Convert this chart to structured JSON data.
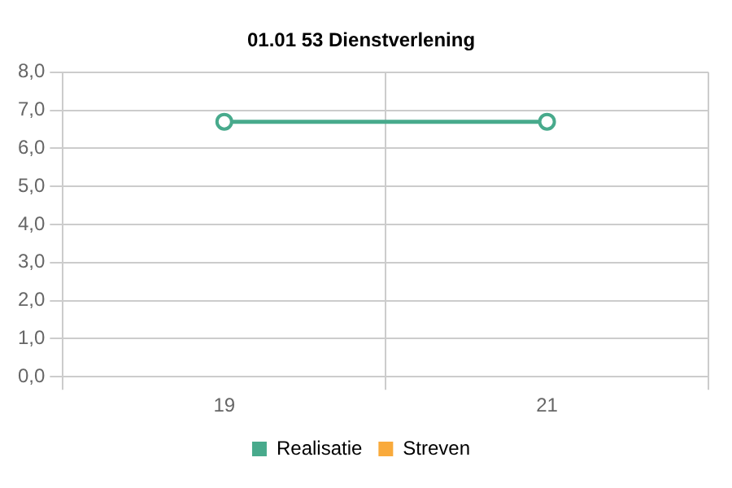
{
  "chart_data": {
    "type": "line",
    "title": "01.01 53 Dienstverlening",
    "categories": [
      "19",
      "21"
    ],
    "series": [
      {
        "name": "Realisatie",
        "color": "#48aa8c",
        "values": [
          6.7,
          6.7
        ]
      },
      {
        "name": "Streven",
        "color": "#f9aa3c",
        "values": [
          null,
          null
        ]
      }
    ],
    "ylim": [
      0,
      8
    ],
    "yticks": [
      {
        "value": 0,
        "label": "0,0"
      },
      {
        "value": 1,
        "label": "1,0"
      },
      {
        "value": 2,
        "label": "2,0"
      },
      {
        "value": 3,
        "label": "3,0"
      },
      {
        "value": 4,
        "label": "4,0"
      },
      {
        "value": 5,
        "label": "5,0"
      },
      {
        "value": 6,
        "label": "6,0"
      },
      {
        "value": 7,
        "label": "7,0"
      },
      {
        "value": 8,
        "label": "8,0"
      }
    ],
    "grid": true,
    "legend": "bottom",
    "marker": "circle",
    "line_style": "solid"
  }
}
